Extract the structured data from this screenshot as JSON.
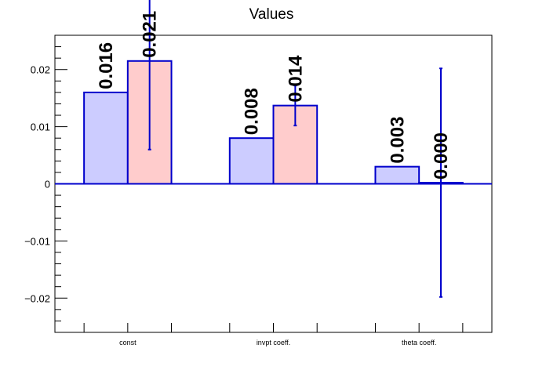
{
  "chart_data": {
    "type": "bar",
    "title": "Values",
    "xlabel": "",
    "ylabel": "",
    "categories": [
      "const",
      "invpt coeff.",
      "theta coeff."
    ],
    "ylim": [
      -0.026,
      0.026
    ],
    "yticks": [
      -0.02,
      -0.01,
      0,
      0.01,
      0.02
    ],
    "ytick_labels": [
      "−0.02",
      "−0.01",
      "0",
      "0.01",
      "0.02"
    ],
    "series": [
      {
        "values": [
          0.016,
          0.008,
          0.003
        ],
        "labels": [
          "0.016",
          "0.008",
          "0.003"
        ],
        "color": "#ccccff",
        "edge": "#0000cc"
      },
      {
        "values": [
          0.0215,
          0.0137,
          0.0002
        ],
        "errors": [
          0.0155,
          0.0035,
          0.02
        ],
        "labels": [
          "0.021",
          "0.014",
          "0.000"
        ],
        "color": "#ffcccc",
        "edge": "#0000cc"
      }
    ],
    "grid": false,
    "legend": "none"
  }
}
